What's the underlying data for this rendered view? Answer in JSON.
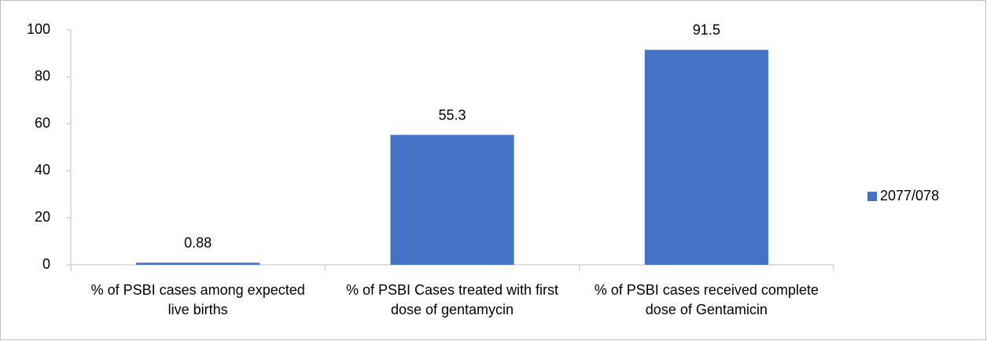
{
  "chart_data": {
    "type": "bar",
    "categories": [
      "% of PSBI cases among expected live births",
      "% of PSBI Cases treated with first dose of gentamycin",
      "% of PSBI cases received complete dose of Gentamicin"
    ],
    "series": [
      {
        "name": "2077/078",
        "color": "#4472c4",
        "values": [
          0.88,
          55.3,
          91.5
        ]
      }
    ],
    "ylim": [
      0,
      100
    ],
    "yticks": [
      0,
      20,
      40,
      60,
      80,
      100
    ],
    "grid": false,
    "legend": "right"
  }
}
